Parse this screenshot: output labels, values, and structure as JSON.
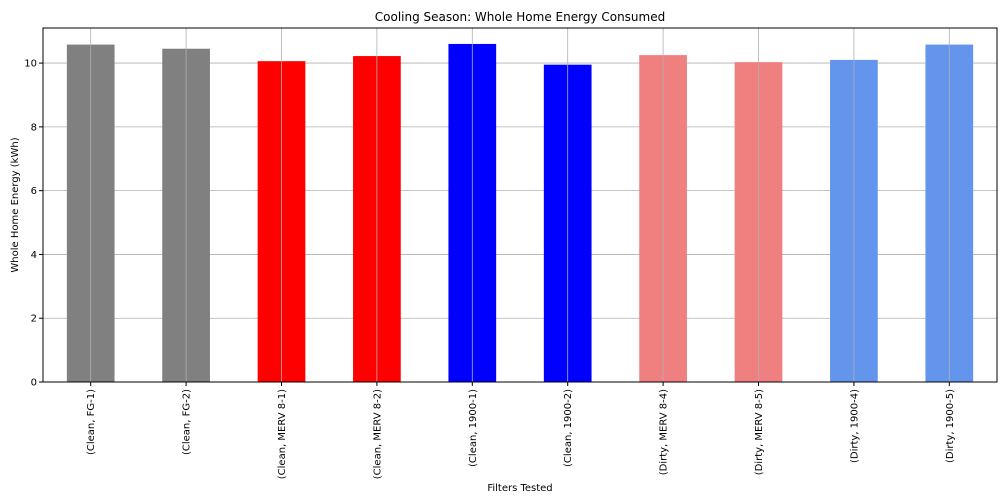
{
  "chart_data": {
    "type": "bar",
    "title": "Cooling Season: Whole Home Energy Consumed",
    "xlabel": "Filters Tested",
    "ylabel": "Whole Home Energy (kWh)",
    "ylim": [
      0,
      11.1
    ],
    "yticks": [
      0,
      2,
      4,
      6,
      8,
      10
    ],
    "grid": true,
    "categories": [
      "(Clean, FG-1)",
      "(Clean, FG-2)",
      "(Clean, MERV 8-1)",
      "(Clean, MERV 8-2)",
      "(Clean, 1900-1)",
      "(Clean, 1900-2)",
      "(Dirty, MERV 8-4)",
      "(Dirty, MERV 8-5)",
      "(Dirty, 1900-4)",
      "(Dirty, 1900-5)"
    ],
    "values": [
      10.58,
      10.45,
      10.06,
      10.22,
      10.6,
      9.95,
      10.25,
      10.03,
      10.1,
      10.58
    ],
    "colors": [
      "#808080",
      "#808080",
      "#ff0000",
      "#ff0000",
      "#0000ff",
      "#0000ff",
      "#f08080",
      "#f08080",
      "#6495ed",
      "#6495ed"
    ]
  }
}
